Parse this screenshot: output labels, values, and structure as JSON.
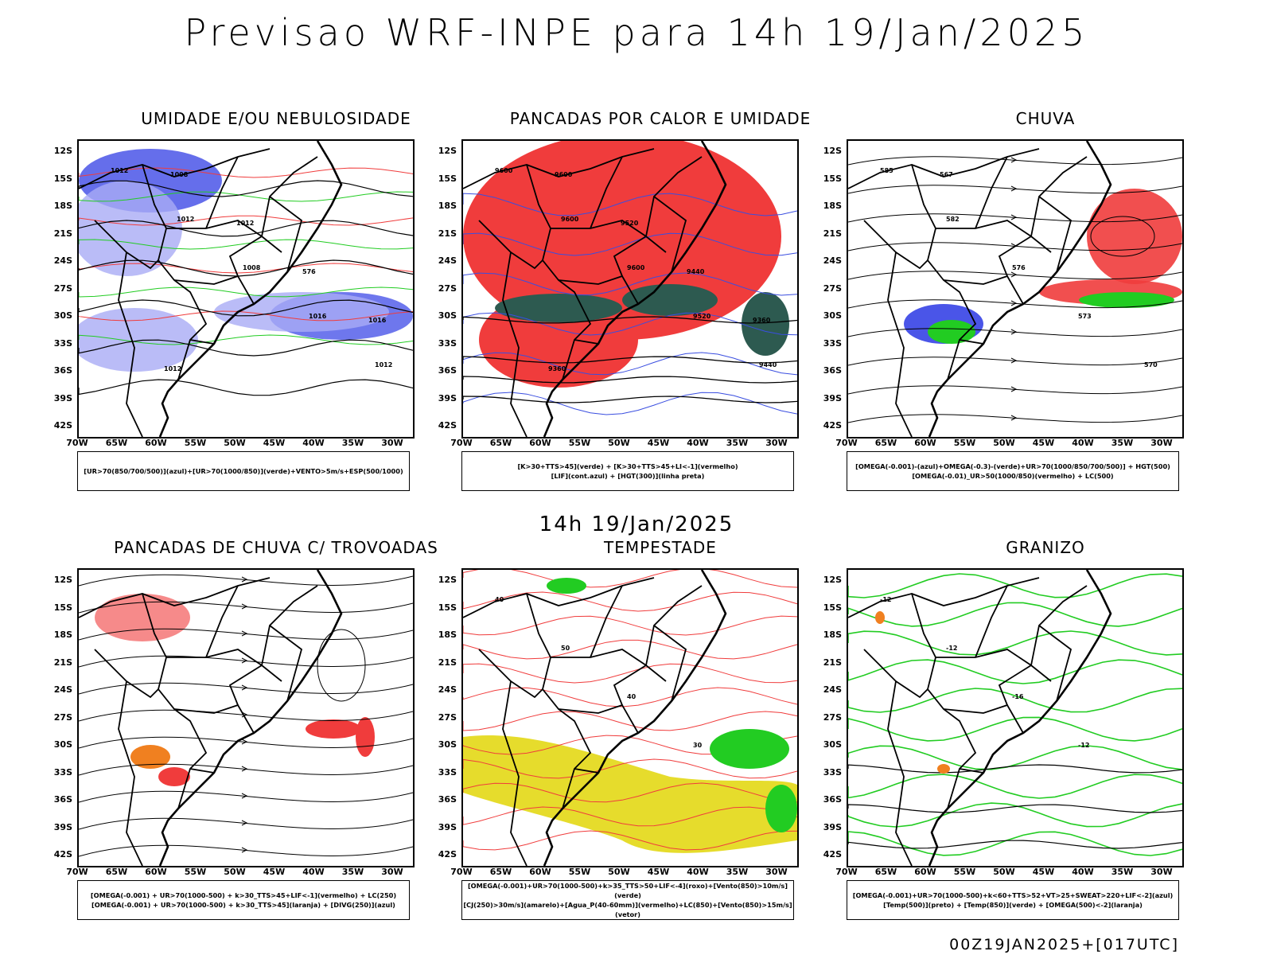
{
  "main_title": "Previsao WRF-INPE  para 14h 19/Jan/2025",
  "mid_title": "14h 19/Jan/2025",
  "footer": "00Z19JAN2025+[017UTC]",
  "lat_labels": [
    "12S",
    "15S",
    "18S",
    "21S",
    "24S",
    "27S",
    "30S",
    "33S",
    "36S",
    "39S",
    "42S"
  ],
  "lon_labels": [
    "70W",
    "65W",
    "60W",
    "55W",
    "50W",
    "45W",
    "40W",
    "35W",
    "30W"
  ],
  "colors": {
    "blue": "#4a55e8",
    "lightblue": "#a9abf5",
    "green": "#22cc22",
    "red": "#f03c3c",
    "orange": "#f08020",
    "yellow": "#e6dc2c",
    "dkgreen": "#2d5a50"
  },
  "panels": [
    {
      "title": "UMIDADE E/OU NEBULOSIDADE",
      "legend": [
        "[UR>70(850/700/500)](azul)+[UR>70(1000/850)](verde)+VENTO>5m/s+ESP(500/1000)"
      ],
      "contour_labels": [
        "1012",
        "1012",
        "1008",
        "1016",
        "1012",
        "1008",
        "1012",
        "576",
        "1016",
        "1012"
      ]
    },
    {
      "title": "PANCADAS POR CALOR E UMIDADE",
      "legend": [
        "[K>30+TTS>45](verde)  +  [K>30+TTS>45+LI<-1](vermelho)",
        "[LIF](cont.azul)  +  [HGT(300)](linha preta)"
      ],
      "contour_labels": [
        "9600",
        "9600",
        "9600",
        "9520",
        "9440",
        "9600",
        "9520",
        "9440",
        "9360",
        "9360"
      ]
    },
    {
      "title": "CHUVA",
      "legend": [
        "[OMEGA(-0.001)-(azul)+OMEGA(-0.3)-(verde)+UR>70(1000/850/700/500)]  +  HGT(500)",
        "[OMEGA(-0.01)_UR>50(1000/850)(vermelho)  +  LC(500)"
      ],
      "contour_labels": [
        "585",
        "582",
        "576",
        "573",
        "570",
        "567"
      ]
    },
    {
      "title": "PANCADAS DE CHUVA C/ TROVOADAS",
      "legend": [
        "[OMEGA(-0.001)  +  UR>70(1000-500)  +  k>30_TTS>45+LIF<-1](vermelho)  +  LC(250)",
        "[OMEGA(-0.001)  +  UR>70(1000-500)  +  k>30_TTS>45](laranja)  +  [DIVG(250)](azul)"
      ],
      "contour_labels": []
    },
    {
      "title": "TEMPESTADE",
      "legend": [
        "[OMEGA(-0.001)+UR>70(1000-500)+k>35_TTS>50+LIF<-4](roxo)+[Vento(850)>10m/s](verde)",
        "[CJ(250)>30m/s](amarelo)+[Agua_P(40-60mm)](vermelho)+LC(850)+[Vento(850)>15m/s](vetor)"
      ],
      "contour_labels": [
        "40",
        "50",
        "40",
        "30"
      ]
    },
    {
      "title": "GRANIZO",
      "legend": [
        "[OMEGA(-0.001)+UR>70(1000-500)+k<60+TTS>52+VT>25+SWEAT>220+LIF<-2](azul)",
        "[Temp(500)](preto)  +  [Temp(850)](verde)  +  [OMEGA(500)<-2](laranja)"
      ],
      "contour_labels": [
        "-12",
        "-12",
        "-16",
        "-12"
      ]
    }
  ]
}
